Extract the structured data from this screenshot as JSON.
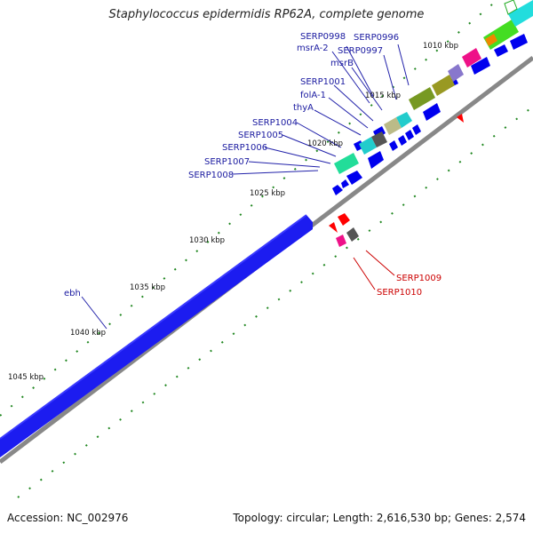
{
  "title": "Staphylococcus epidermidis RP62A, complete genome",
  "footer": {
    "accession": "Accession: NC_002976",
    "summary": "Topology: circular; Length: 2,616,530 bp; Genes: 2,574"
  },
  "colors": {
    "forward_gene": "#0000ff",
    "reverse_gene": "#ff0000",
    "label_forward": "#000099",
    "label_reverse": "#cc0000",
    "tick": "#228822",
    "backbone": "#888888"
  },
  "scale_labels": [
    "1010 kbp",
    "1015 kbp",
    "1020 kbp",
    "1025 kbp",
    "1030 kbp",
    "1035 kbp",
    "1040 kbp",
    "1045 kbp"
  ],
  "gene_labels_forward": [
    "SERP0998",
    "SERP0996",
    "msrA-2",
    "SERP0997",
    "msrB",
    "SERP1001",
    "folA-1",
    "thyA",
    "SERP1004",
    "SERP1005",
    "SERP1006",
    "SERP1007",
    "SERP1008",
    "ebh"
  ],
  "gene_labels_reverse": [
    "SERP1009",
    "SERP1010"
  ]
}
